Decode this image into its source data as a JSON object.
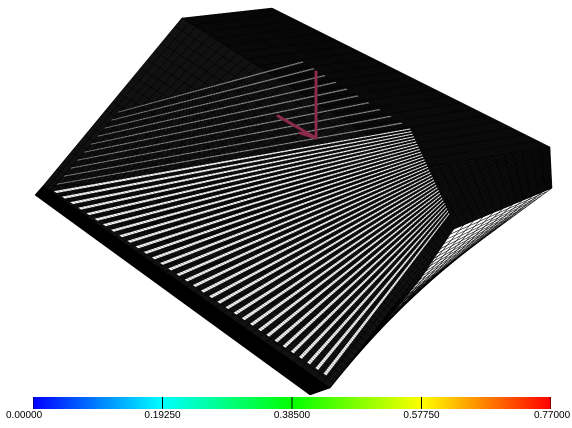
{
  "colorbar": {
    "ticks": [
      "0.00000",
      "0.19250",
      "0.38500",
      "0.57750",
      "0.77000"
    ],
    "colors": [
      "#0000ff",
      "#00ffff",
      "#00ff00",
      "#ffff00",
      "#ff0000"
    ]
  },
  "mesh": {
    "line_color": "#000000",
    "background": "#ffffff",
    "axis_color": "#8b2a4a"
  }
}
